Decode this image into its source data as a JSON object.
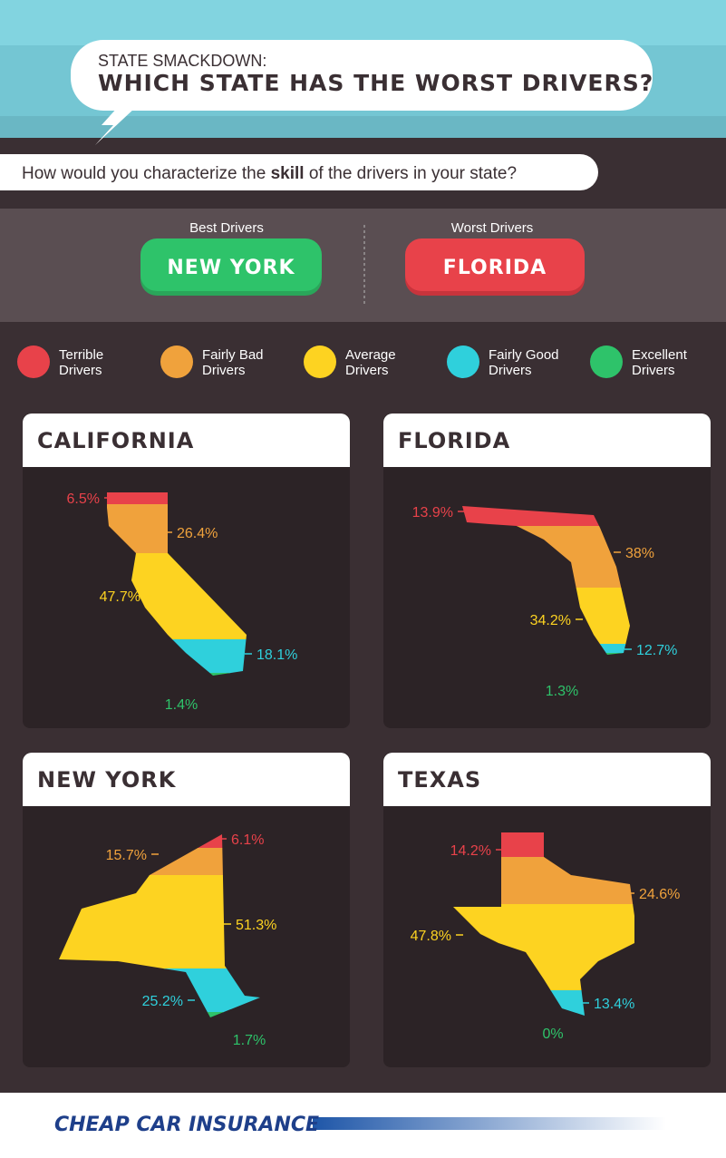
{
  "header": {
    "kicker": "STATE SMACKDOWN:",
    "title": "WHICH STATE HAS THE WORST DRIVERS?"
  },
  "question": {
    "before": "How would you characterize the ",
    "bold": "skill",
    "after": " of the drivers in your state?"
  },
  "verdict": {
    "best": {
      "label": "Best Drivers",
      "state": "NEW YORK"
    },
    "worst": {
      "label": "Worst Drivers",
      "state": "FLORIDA"
    }
  },
  "legend": [
    {
      "lines": [
        "Terrible",
        "Drivers"
      ],
      "color": "#e8424a"
    },
    {
      "lines": [
        "Fairly Bad",
        "Drivers"
      ],
      "color": "#f0a23c"
    },
    {
      "lines": [
        "Average",
        "Drivers"
      ],
      "color": "#fdd321"
    },
    {
      "lines": [
        "Fairly Good",
        "Drivers"
      ],
      "color": "#2fd0dc"
    },
    {
      "lines": [
        "Excellent",
        "Drivers"
      ],
      "color": "#2ec36a"
    }
  ],
  "panels": [
    {
      "state": "CALIFORNIA",
      "values": [
        "6.5%",
        "26.4%",
        "47.7%",
        "18.1%",
        "1.4%"
      ]
    },
    {
      "state": "FLORIDA",
      "values": [
        "13.9%",
        "38%",
        "34.2%",
        "12.7%",
        "1.3%"
      ]
    },
    {
      "state": "NEW YORK",
      "values": [
        "6.1%",
        "15.7%",
        "51.3%",
        "25.2%",
        "1.7%"
      ]
    },
    {
      "state": "TEXAS",
      "values": [
        "14.2%",
        "24.6%",
        "47.8%",
        "13.4%",
        "0%"
      ]
    }
  ],
  "footer": {
    "logo": "CHEAP CAR INSURANCE"
  }
}
